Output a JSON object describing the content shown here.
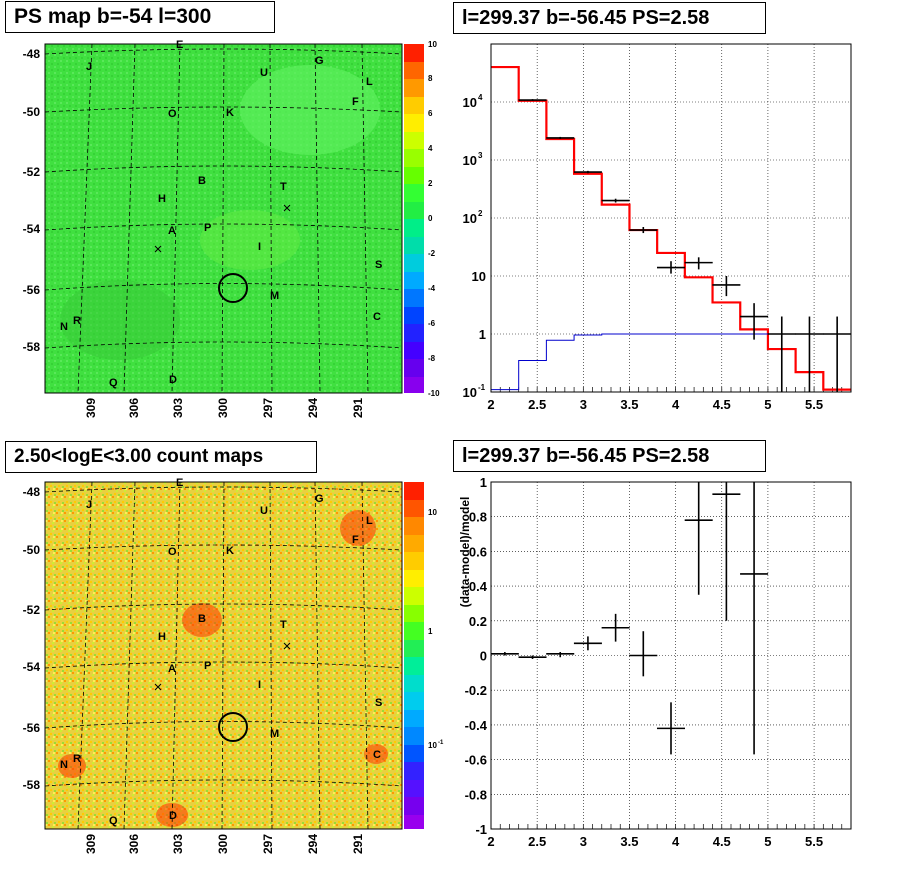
{
  "panels": {
    "tl": {
      "title": "PS map b=-54 l=300"
    },
    "tr": {
      "title": "l=299.37 b=-56.45 PS=2.58"
    },
    "bl": {
      "title": "2.50<logE<3.00 count maps"
    },
    "br": {
      "title": "l=299.37 b=-56.45 PS=2.58"
    }
  },
  "maps": {
    "lat_labels": [
      "-48",
      "-50",
      "-52",
      "-54",
      "-56",
      "-58"
    ],
    "lon_labels": [
      "309",
      "306",
      "303",
      "300",
      "297",
      "294",
      "291"
    ],
    "source_labels": [
      "E",
      "J",
      "G",
      "U",
      "L",
      "F",
      "O",
      "K",
      "B",
      "T",
      "H",
      "A",
      "P",
      "I",
      "S",
      "M",
      "N",
      "R",
      "C",
      "Q",
      "D"
    ],
    "ps_colorbar_labels": [
      "10",
      "8",
      "6",
      "4",
      "2",
      "0",
      "-2",
      "-4",
      "-6",
      "-8",
      "-10"
    ],
    "count_colorbar_labels": [
      "10",
      "1",
      "10",
      "-1"
    ]
  },
  "chart_data": [
    {
      "type": "line",
      "title": "l=299.37 b=-56.45 PS=2.58",
      "xlim": [
        2,
        5.9
      ],
      "ylim": [
        0.1,
        100000
      ],
      "yscale": "log",
      "grid": true,
      "x_ticks": [
        "2",
        "2.5",
        "3",
        "3.5",
        "4",
        "4.5",
        "5",
        "5.5"
      ],
      "y_ticks": [
        {
          "base": "10",
          "exp": "-1"
        },
        {
          "base": "1",
          "exp": ""
        },
        {
          "base": "10",
          "exp": ""
        },
        {
          "base": "10",
          "exp": "2"
        },
        {
          "base": "10",
          "exp": "3"
        },
        {
          "base": "10",
          "exp": "4"
        }
      ],
      "series": [
        {
          "role": "model",
          "color": "#ff0000",
          "style": "step",
          "edges": [
            2.0,
            2.3,
            2.6,
            2.9,
            3.2,
            3.5,
            3.8,
            4.1,
            4.4,
            4.7,
            5.0,
            5.3,
            5.6,
            5.9
          ],
          "values": [
            40000,
            10500,
            2300,
            580,
            170,
            62,
            25,
            9.5,
            3.5,
            1.2,
            0.55,
            0.22,
            0.11
          ]
        },
        {
          "role": "background",
          "color": "#0000cc",
          "style": "step",
          "edges": [
            2.0,
            2.3,
            2.6,
            2.9,
            3.2,
            3.5,
            3.8,
            4.1,
            4.4,
            4.7,
            5.0,
            5.3,
            5.6,
            5.9
          ],
          "values": [
            0.11,
            0.35,
            0.78,
            0.96,
            1.0,
            1.0,
            1.0,
            1.0,
            1.0,
            1.0,
            1.0,
            1.0,
            1.0
          ]
        },
        {
          "role": "data",
          "color": "#000000",
          "style": "errorbar",
          "points": [
            {
              "x": 2.45,
              "y": 10800,
              "lo": 10400,
              "hi": 11200
            },
            {
              "x": 2.75,
              "y": 2400,
              "lo": 2300,
              "hi": 2500
            },
            {
              "x": 3.05,
              "y": 620,
              "lo": 590,
              "hi": 650
            },
            {
              "x": 3.35,
              "y": 200,
              "lo": 185,
              "hi": 215
            },
            {
              "x": 3.65,
              "y": 62,
              "lo": 55,
              "hi": 70
            },
            {
              "x": 3.95,
              "y": 14,
              "lo": 11,
              "hi": 18
            },
            {
              "x": 4.25,
              "y": 17,
              "lo": 13,
              "hi": 21
            },
            {
              "x": 4.55,
              "y": 7,
              "lo": 4.5,
              "hi": 10
            },
            {
              "x": 4.85,
              "y": 2.0,
              "lo": 0.8,
              "hi": 3.4
            },
            {
              "x": 5.15,
              "y": 1.0,
              "lo": 0.1,
              "hi": 2.0
            },
            {
              "x": 5.45,
              "y": 1.0,
              "lo": 0.1,
              "hi": 2.0
            },
            {
              "x": 5.75,
              "y": 1.0,
              "lo": 0.1,
              "hi": 2.0
            }
          ]
        }
      ]
    },
    {
      "type": "scatter",
      "title": "l=299.37 b=-56.45 PS=2.58",
      "ylabel": "(data-model)/model",
      "xlim": [
        2,
        5.9
      ],
      "ylim": [
        -1,
        1
      ],
      "grid": true,
      "x_ticks": [
        "2",
        "2.5",
        "3",
        "3.5",
        "4",
        "4.5",
        "5",
        "5.5"
      ],
      "y_ticks": [
        "-1",
        "-0.8",
        "-0.6",
        "-0.4",
        "-0.2",
        "0",
        "0.2",
        "0.4",
        "0.6",
        "0.8",
        "1"
      ],
      "series": [
        {
          "role": "residual",
          "color": "#000000",
          "style": "errorbar",
          "points": [
            {
              "x": 2.15,
              "y": 0.01,
              "lo": 0.0,
              "hi": 0.02
            },
            {
              "x": 2.45,
              "y": -0.01,
              "lo": -0.02,
              "hi": 0.0
            },
            {
              "x": 2.75,
              "y": 0.01,
              "lo": -0.01,
              "hi": 0.02
            },
            {
              "x": 3.05,
              "y": 0.07,
              "lo": 0.03,
              "hi": 0.11
            },
            {
              "x": 3.35,
              "y": 0.16,
              "lo": 0.08,
              "hi": 0.24
            },
            {
              "x": 3.65,
              "y": 0.0,
              "lo": -0.12,
              "hi": 0.14
            },
            {
              "x": 3.95,
              "y": -0.42,
              "lo": -0.57,
              "hi": -0.27
            },
            {
              "x": 4.25,
              "y": 0.78,
              "lo": 0.35,
              "hi": 1.0
            },
            {
              "x": 4.55,
              "y": 0.93,
              "lo": 0.2,
              "hi": 1.0
            },
            {
              "x": 4.85,
              "y": 0.47,
              "lo": -0.57,
              "hi": 1.0
            }
          ]
        }
      ]
    }
  ]
}
